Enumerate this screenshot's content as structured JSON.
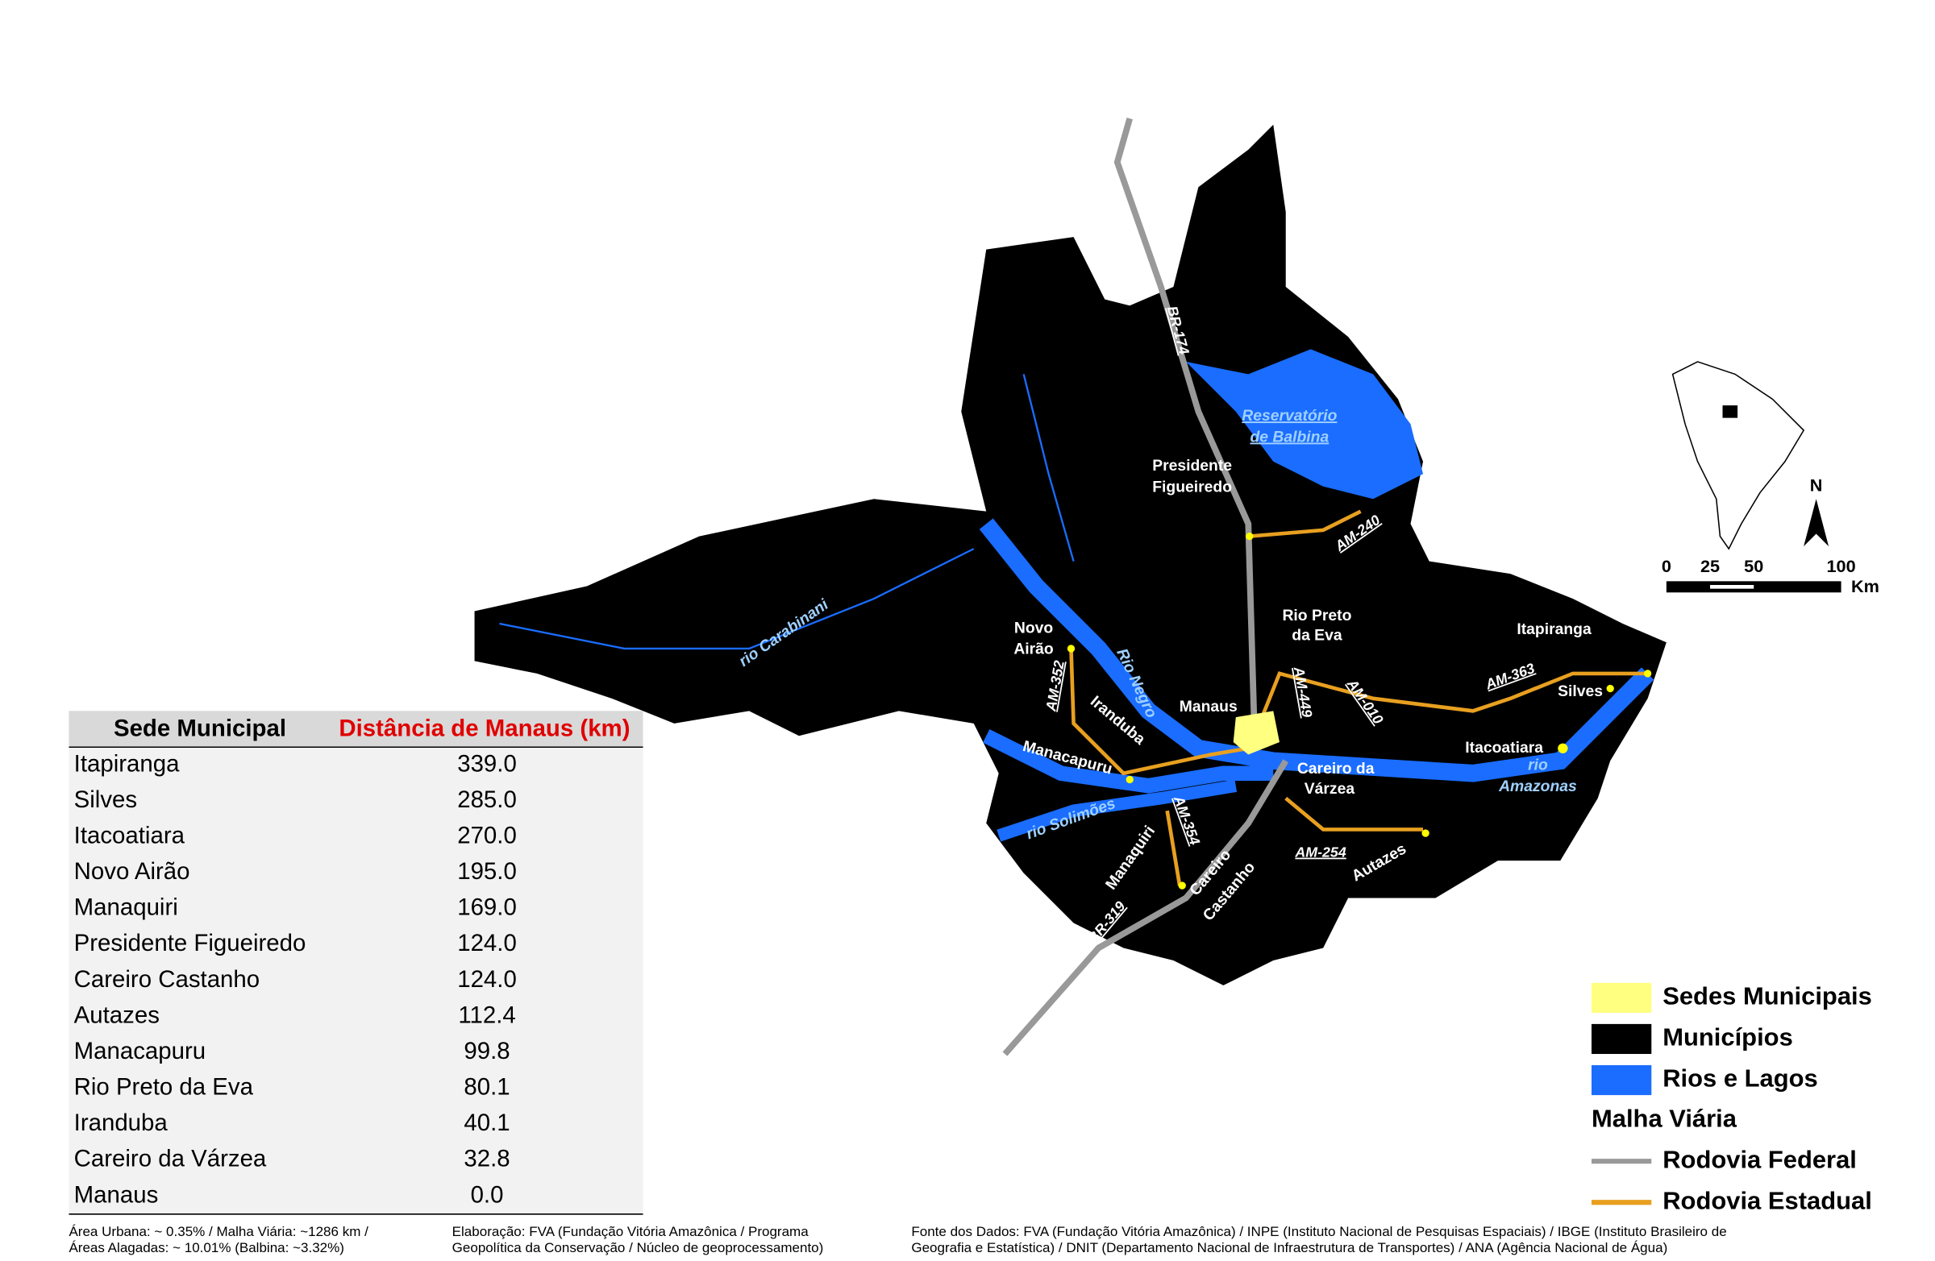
{
  "map": {
    "labels": {
      "places": [
        "Presidente",
        "Figueiredo",
        "Rio Preto",
        "da Eva",
        "Itapiranga",
        "Silves",
        "Novo",
        "Airão",
        "Manaus",
        "Iranduba",
        "Manacapuru",
        "Itacoatiara",
        "Careiro da",
        "Várzea",
        "Manaquiri",
        "Careiro",
        "Castanho",
        "Autazes"
      ],
      "roads": [
        "BR-174",
        "AM-240",
        "AM-352",
        "AM-449",
        "AM-010",
        "AM-363",
        "AM-354",
        "AM-254",
        "BR-319"
      ],
      "waters": [
        "Reservatório",
        "de Balbina",
        "rio Carabinani",
        "Rio Negro",
        "rio Solimões",
        "rio",
        "Amazonas"
      ]
    },
    "north": "N",
    "scale": [
      "0",
      "25",
      "50",
      "100",
      "Km"
    ]
  },
  "table": {
    "header": [
      "Sede Municipal",
      "Distância de Manaus (km)"
    ],
    "rows": [
      [
        "Itapiranga",
        "339.0"
      ],
      [
        "Silves",
        "285.0"
      ],
      [
        "Itacoatiara",
        "270.0"
      ],
      [
        "Novo Airão",
        "195.0"
      ],
      [
        "Manaquiri",
        "169.0"
      ],
      [
        "Presidente Figueiredo",
        "124.0"
      ],
      [
        "Careiro Castanho",
        "124.0"
      ],
      [
        "Autazes",
        "112.4"
      ],
      [
        "Manacapuru",
        "99.8"
      ],
      [
        "Rio Preto da Eva",
        "80.1"
      ],
      [
        "Iranduba",
        "40.1"
      ],
      [
        "Careiro da Várzea",
        "32.8"
      ],
      [
        "Manaus",
        "0.0"
      ]
    ]
  },
  "legend": {
    "items": [
      "Sedes Municipais",
      "Municípios",
      "Rios e Lagos"
    ],
    "heading": "Malha Viária",
    "roads": [
      "Rodovia Federal",
      "Rodovia Estadual"
    ]
  },
  "notes": [
    [
      "Área Urbana: ~ 0.35% / Malha Viária: ~1286 km /",
      "Áreas Alagadas: ~ 10.01% (Balbina: ~3.32%)"
    ],
    [
      "Elaboração: FVA (Fundação Vitória Amazônica / Programa",
      "Geopolítica da Conservação / Núcleo de geoprocessamento)"
    ],
    [
      "Fonte dos Dados:  FVA (Fundação Vitória Amazônica) / INPE (Instituto Nacional de Pesquisas Espaciais) / IBGE (Instituto Brasileiro de",
      "Geografia e Estatística) / DNIT (Departamento Nacional de Infraestrutura de Transportes) / ANA (Agência Nacional de Água)"
    ]
  ]
}
